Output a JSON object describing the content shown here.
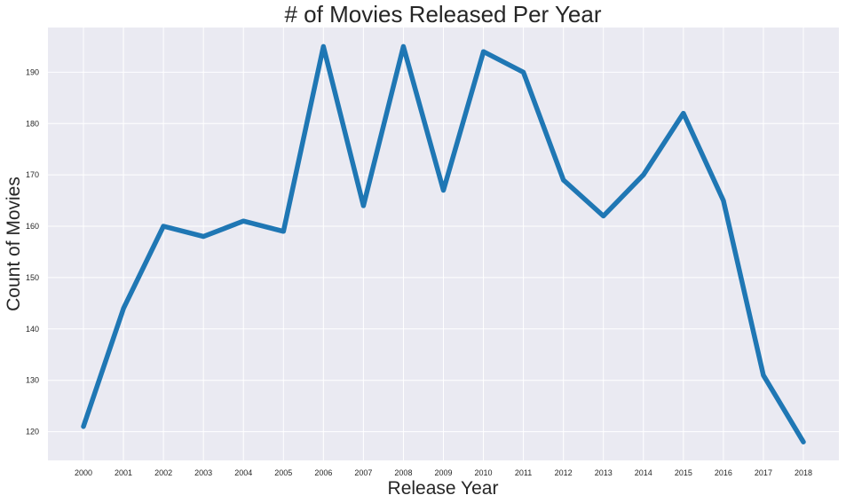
{
  "chart_data": {
    "type": "line",
    "title": "# of Movies Released Per Year",
    "xlabel": "Release Year",
    "ylabel": "Count of Movies",
    "x": [
      "2000",
      "2001",
      "2002",
      "2003",
      "2004",
      "2005",
      "2006",
      "2007",
      "2008",
      "2009",
      "2010",
      "2011",
      "2012",
      "2013",
      "2014",
      "2015",
      "2016",
      "2017",
      "2018"
    ],
    "series": [
      {
        "values": [
          121,
          144,
          160,
          158,
          161,
          159,
          195,
          164,
          195,
          167,
          194,
          190,
          169,
          162,
          170,
          182,
          165,
          131,
          118
        ]
      }
    ],
    "yticks": [
      120,
      130,
      140,
      150,
      160,
      170,
      180,
      190
    ],
    "ylim": [
      114.4,
      198.7
    ],
    "grid": true,
    "colors": {
      "line": "#1f77b4",
      "plot_background": "#eaeaf2",
      "grid": "#ffffff"
    }
  }
}
